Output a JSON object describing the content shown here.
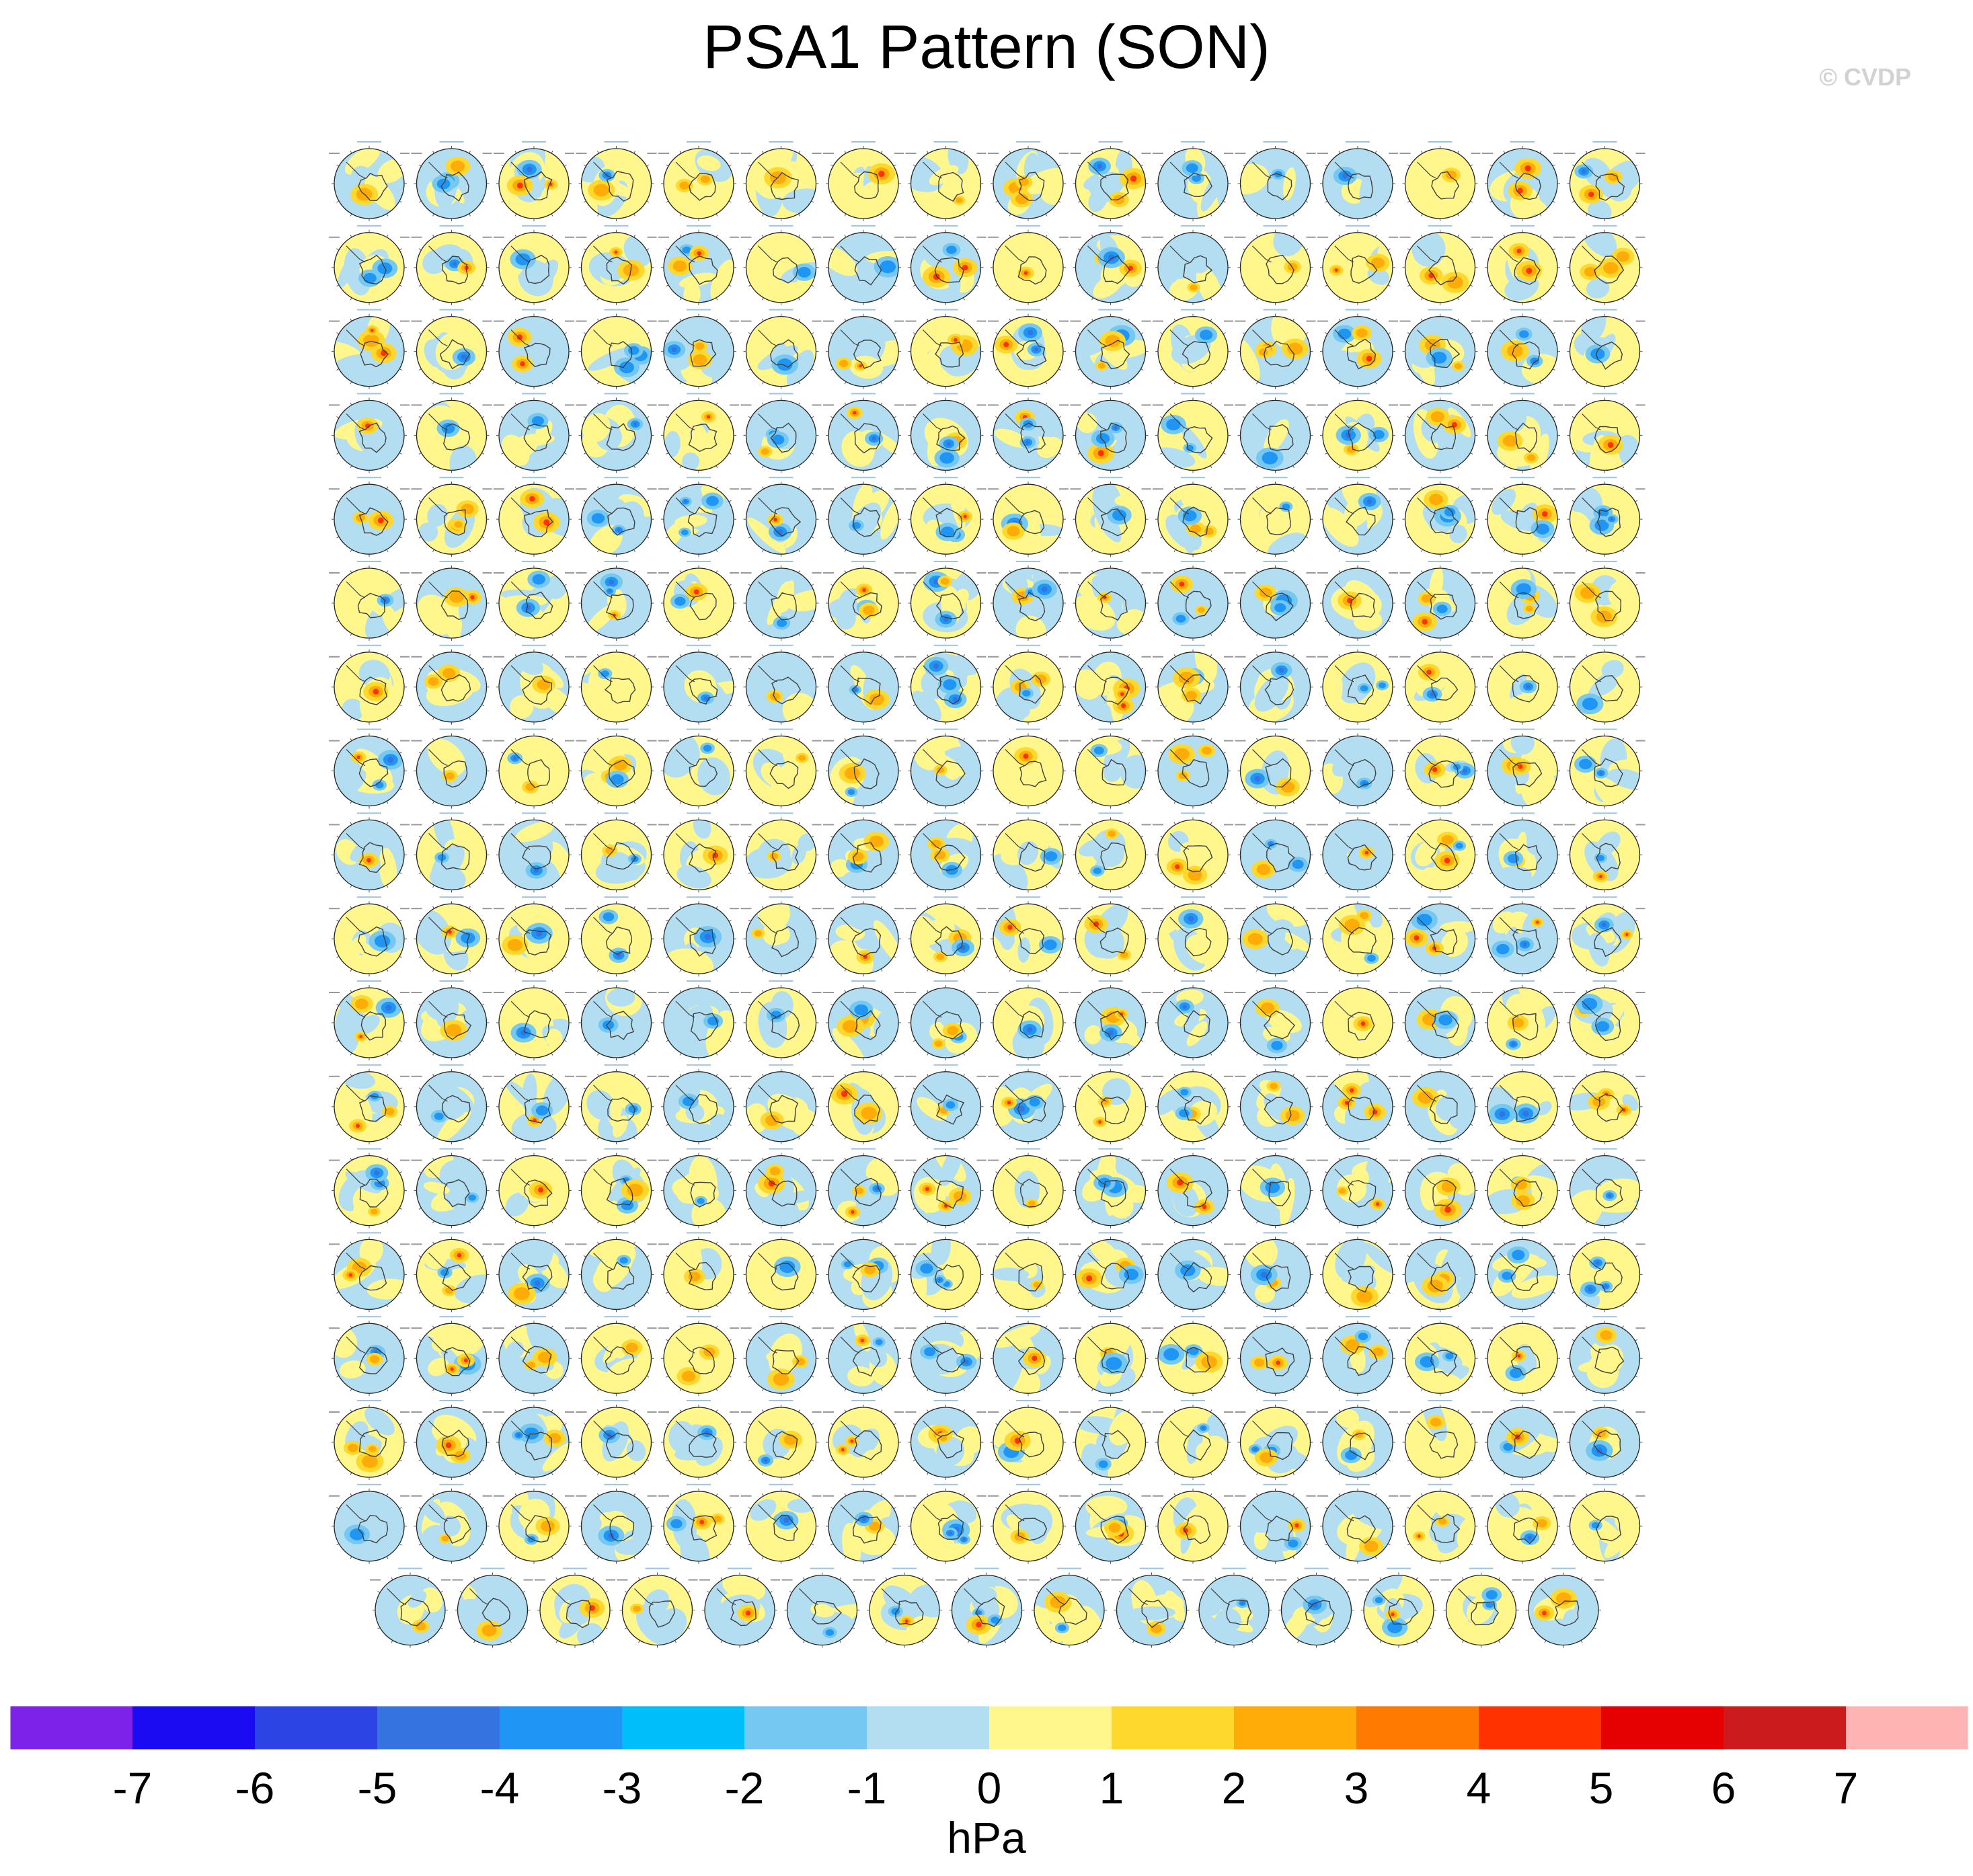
{
  "title": "PSA1 Pattern (SON)",
  "watermark": "© CVDP",
  "chart_data": {
    "type": "small-multiples",
    "description_map": "grid of south polar stereographic sea-level-pressure pattern panels",
    "panel_grid": {
      "full_rows": 17,
      "columns": 16,
      "last_row_panels": 15
    },
    "colorbar": {
      "unit": "hPa",
      "tick_labels": [
        "-7",
        "-6",
        "-5",
        "-4",
        "-3",
        "-2",
        "-1",
        "0",
        "1",
        "2",
        "3",
        "4",
        "5",
        "6",
        "7"
      ],
      "colors": [
        "#7d22e8",
        "#1a0bf2",
        "#2b44e3",
        "#3574e0",
        "#1f96f5",
        "#00bef9",
        "#74c8f2",
        "#b3def2",
        "#fff68c",
        "#ffd82e",
        "#ffac08",
        "#ff7a00",
        "#ff3200",
        "#e50101",
        "#cb1b1d",
        "#ffb4b4"
      ]
    }
  }
}
